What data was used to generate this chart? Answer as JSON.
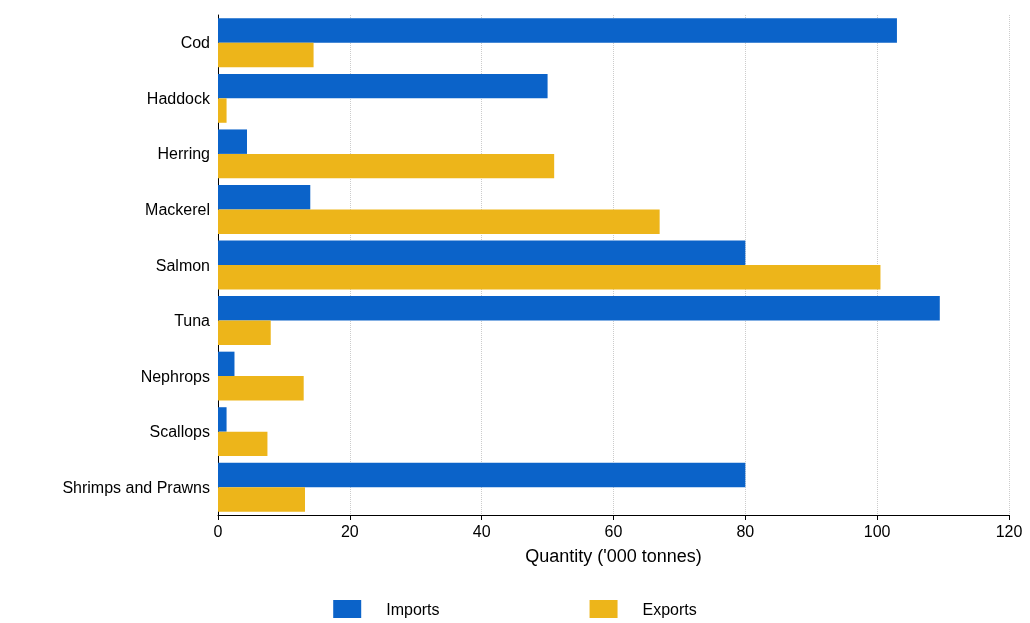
{
  "chart_data": {
    "type": "bar",
    "orientation": "horizontal",
    "xlabel": "Quantity ('000 tonnes)",
    "categories": [
      "Cod",
      "Haddock",
      "Herring",
      "Mackerel",
      "Salmon",
      "Tuna",
      "Nephrops",
      "Scallops",
      "Shrimps and Prawns"
    ],
    "series": [
      {
        "name": "Imports",
        "color": "#0b63c9",
        "values": [
          103,
          50,
          4.4,
          14,
          80,
          109.5,
          2.5,
          1.3,
          80
        ]
      },
      {
        "name": "Exports",
        "color": "#edb51a",
        "values": [
          14.5,
          1.3,
          51,
          67,
          100.5,
          8,
          13,
          7.5,
          13.2
        ]
      }
    ],
    "xlim": [
      0,
      120
    ],
    "xticks": [
      0,
      20,
      40,
      60,
      80,
      100,
      120
    ],
    "grid": "x",
    "legend": "bottom"
  }
}
